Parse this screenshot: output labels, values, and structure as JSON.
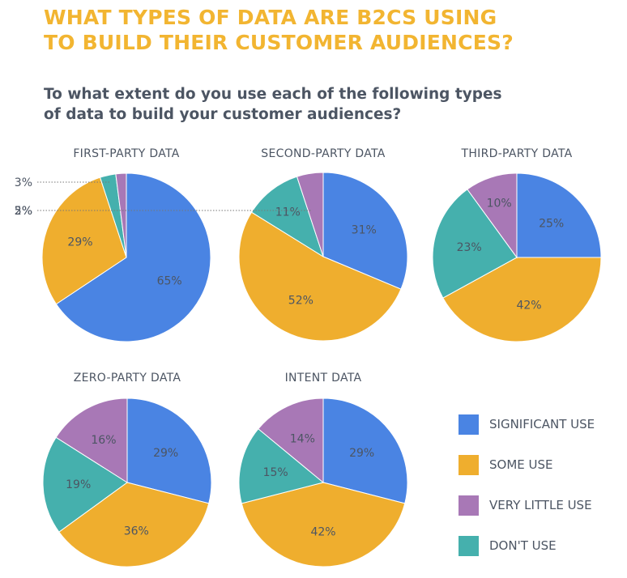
{
  "page": {
    "title_line1": "WHAT TYPES OF DATA ARE B2CS USING",
    "title_line2": "TO BUILD THEIR CUSTOMER AUDIENCES?",
    "subtitle_line1": "To what extent do you use each of the following types",
    "subtitle_line2": "of data to build your customer audiences?"
  },
  "colors": {
    "significant_use": "#4A84E3",
    "some_use": "#EFAE2E",
    "very_little_use": "#A878B6",
    "dont_use": "#45B0AD",
    "title": "#F2B531",
    "text": "#4C5563"
  },
  "legend": [
    {
      "label": "SIGNIFICANT USE",
      "color": "#4A84E3"
    },
    {
      "label": "SOME USE",
      "color": "#EFAE2E"
    },
    {
      "label": "VERY LITTLE USE",
      "color": "#A878B6"
    },
    {
      "label": "DON'T USE",
      "color": "#45B0AD"
    }
  ],
  "chart_data": [
    {
      "type": "pie",
      "title": "FIRST-PARTY DATA",
      "categories": [
        "SIGNIFICANT USE",
        "SOME USE",
        "DON'T USE",
        "VERY LITTLE USE"
      ],
      "values": [
        65,
        29,
        3,
        2
      ],
      "labels": [
        "65%",
        "29%",
        "3%",
        "2%"
      ]
    },
    {
      "type": "pie",
      "title": "SECOND-PARTY DATA",
      "categories": [
        "SIGNIFICANT USE",
        "SOME USE",
        "DON'T USE",
        "VERY LITTLE USE"
      ],
      "values": [
        31,
        52,
        11,
        5
      ],
      "labels": [
        "31%",
        "52%",
        "11%",
        "5%"
      ]
    },
    {
      "type": "pie",
      "title": "THIRD-PARTY DATA",
      "categories": [
        "SIGNIFICANT USE",
        "SOME USE",
        "DON'T USE",
        "VERY LITTLE USE"
      ],
      "values": [
        25,
        42,
        23,
        10
      ],
      "labels": [
        "25%",
        "42%",
        "23%",
        "10%"
      ]
    },
    {
      "type": "pie",
      "title": "ZERO-PARTY DATA",
      "categories": [
        "SIGNIFICANT USE",
        "SOME USE",
        "DON'T USE",
        "VERY LITTLE USE"
      ],
      "values": [
        29,
        36,
        19,
        16
      ],
      "labels": [
        "29%",
        "36%",
        "19%",
        "16%"
      ]
    },
    {
      "type": "pie",
      "title": "INTENT DATA",
      "categories": [
        "SIGNIFICANT USE",
        "SOME USE",
        "DON'T USE",
        "VERY LITTLE USE"
      ],
      "values": [
        29,
        42,
        15,
        14
      ],
      "labels": [
        "29%",
        "42%",
        "15%",
        "14%"
      ]
    }
  ]
}
